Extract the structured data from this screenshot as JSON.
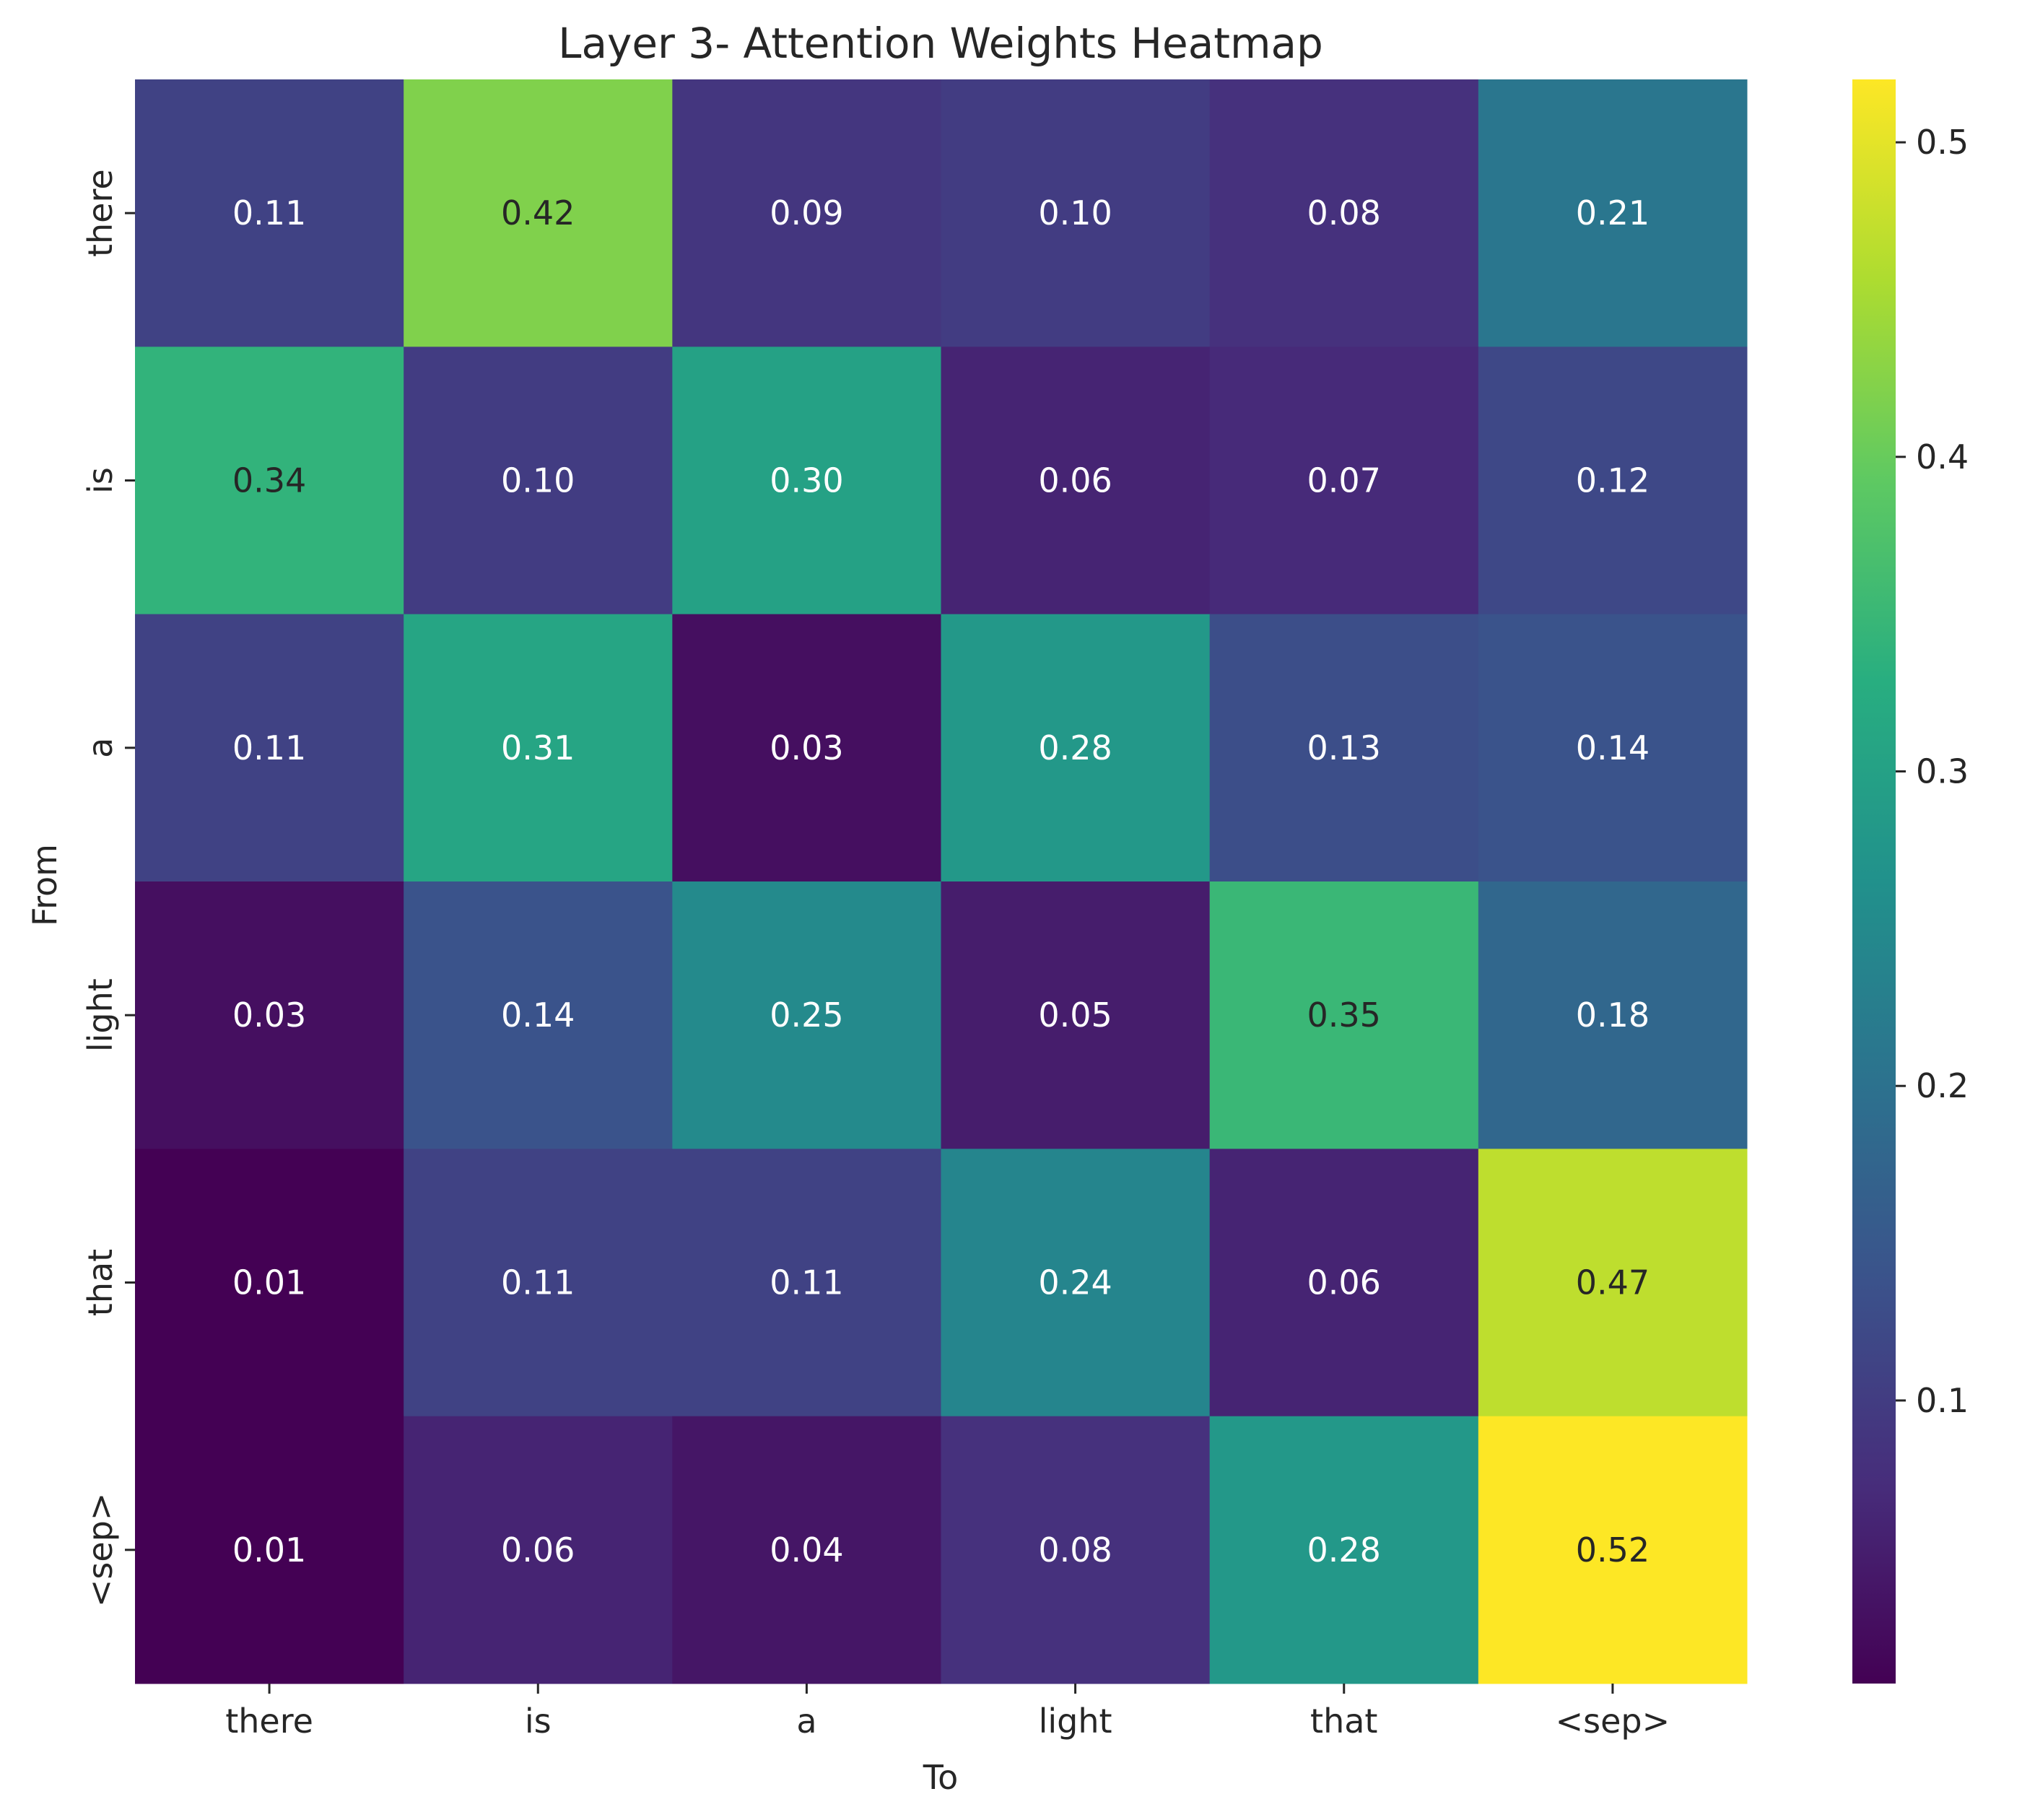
{
  "chart_data": {
    "type": "heatmap",
    "title": "Layer 3- Attention Weights Heatmap",
    "xlabel": "To",
    "ylabel": "From",
    "x_categories": [
      "there",
      "is",
      "a",
      "light",
      "that",
      "<sep>"
    ],
    "y_categories": [
      "there",
      "is",
      "a",
      "light",
      "that",
      "<sep>"
    ],
    "values": [
      [
        0.11,
        0.42,
        0.09,
        0.1,
        0.08,
        0.21
      ],
      [
        0.34,
        0.1,
        0.3,
        0.06,
        0.07,
        0.12
      ],
      [
        0.11,
        0.31,
        0.03,
        0.28,
        0.13,
        0.14
      ],
      [
        0.03,
        0.14,
        0.25,
        0.05,
        0.35,
        0.18
      ],
      [
        0.01,
        0.11,
        0.11,
        0.24,
        0.06,
        0.47
      ],
      [
        0.01,
        0.06,
        0.04,
        0.08,
        0.28,
        0.52
      ]
    ],
    "value_format": "0.00",
    "colormap": "viridis",
    "color_range": [
      0.01,
      0.52
    ],
    "colorbar": {
      "ticks": [
        0.1,
        0.2,
        0.3,
        0.4,
        0.5
      ],
      "tick_labels": [
        "0.1",
        "0.2",
        "0.3",
        "0.4",
        "0.5"
      ],
      "placement": "right"
    },
    "grid": false
  }
}
